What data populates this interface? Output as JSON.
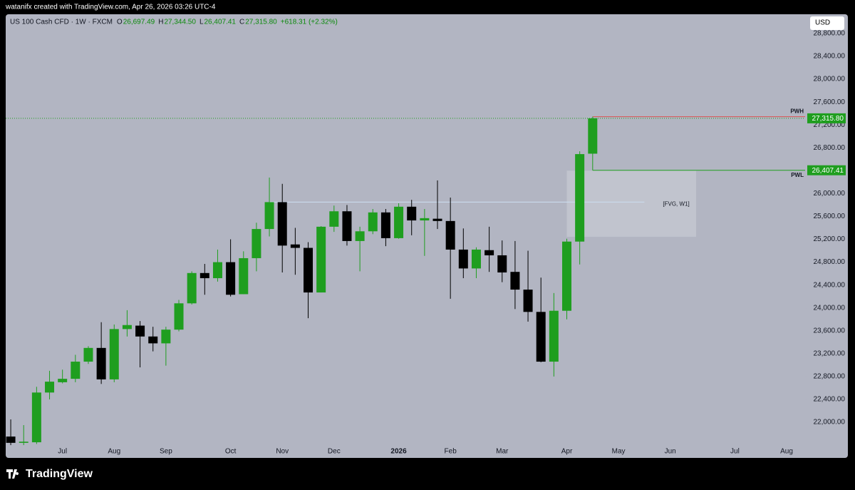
{
  "header": {
    "attribution": "watanifx created with TradingView.com, Apr 26, 2026 03:26 UTC-4",
    "ohlc": [
      {
        "key": "O",
        "value": "26,697.49"
      },
      {
        "key": "H",
        "value": "27,344.50"
      },
      {
        "key": "L",
        "value": "26,407.41"
      },
      {
        "key": "C",
        "value": "27,315.80"
      }
    ],
    "change": "+618.31 (+2.32%)",
    "currency": "USD",
    "brand": "TradingView"
  },
  "chart_data": {
    "type": "candlestick",
    "title": "US 100 Cash CFD · 1W · FXCM",
    "x": [
      0,
      1,
      2,
      3,
      4,
      5,
      6,
      7,
      8,
      9,
      10,
      11,
      12,
      13,
      14,
      15,
      16,
      17,
      18,
      19,
      20,
      21,
      22,
      23,
      24,
      25,
      26,
      27,
      28,
      29,
      30,
      31,
      32,
      33,
      34,
      35,
      36,
      37,
      38,
      39,
      40,
      41,
      42,
      43,
      44,
      45
    ],
    "open": [
      21750,
      21640,
      21650,
      22520,
      22700,
      22760,
      23060,
      23300,
      22750,
      23630,
      23690,
      23500,
      23380,
      23620,
      24080,
      24610,
      24520,
      24800,
      24240,
      24870,
      25380,
      25850,
      25110,
      25050,
      24270,
      25420,
      25690,
      25170,
      25340,
      25670,
      25220,
      25770,
      25530,
      25560,
      25520,
      25020,
      24690,
      25010,
      24920,
      24630,
      24320,
      23930,
      23060,
      23950,
      25160,
      26697.49
    ],
    "high": [
      22050,
      21950,
      22620,
      22900,
      22920,
      23180,
      23330,
      23750,
      23710,
      23960,
      23770,
      23670,
      23670,
      24140,
      24640,
      24770,
      25020,
      25200,
      24990,
      25490,
      26280,
      26170,
      25400,
      25150,
      25430,
      25790,
      25800,
      25420,
      25730,
      25730,
      25830,
      25890,
      25730,
      26230,
      25930,
      25390,
      25060,
      25420,
      25180,
      25170,
      25000,
      24530,
      24260,
      25210,
      26740,
      27344.5
    ],
    "low": [
      21600,
      21600,
      21620,
      22400,
      22680,
      22700,
      23020,
      22670,
      22700,
      23500,
      22960,
      23240,
      22990,
      23590,
      24060,
      24230,
      24460,
      24200,
      24240,
      24640,
      25250,
      24620,
      24580,
      23820,
      24270,
      25330,
      25090,
      24640,
      25290,
      25080,
      25210,
      25270,
      24910,
      25380,
      24160,
      24520,
      24520,
      24630,
      24450,
      23980,
      23760,
      23050,
      22800,
      23800,
      24760,
      26407.41
    ],
    "close": [
      21640,
      21660,
      22520,
      22710,
      22760,
      23060,
      23300,
      22750,
      23630,
      23700,
      23500,
      23380,
      23620,
      24080,
      24610,
      24520,
      24800,
      24230,
      24870,
      25380,
      25850,
      25090,
      25050,
      24270,
      25420,
      25690,
      25170,
      25340,
      25670,
      25220,
      25770,
      25530,
      25570,
      25520,
      25020,
      24690,
      25020,
      24920,
      24620,
      24320,
      23930,
      23060,
      23950,
      25160,
      26690,
      27315.8
    ],
    "up_color": "#1f9e1f",
    "down_color": "#000000",
    "xlim": [
      -0.39,
      61.43
    ],
    "ylim": [
      21626,
      29136
    ],
    "xticks": [
      {
        "value": 4,
        "label": "Jul"
      },
      {
        "value": 8,
        "label": "Aug"
      },
      {
        "value": 12,
        "label": "Sep"
      },
      {
        "value": 17,
        "label": "Oct"
      },
      {
        "value": 21,
        "label": "Nov"
      },
      {
        "value": 25,
        "label": "Dec"
      },
      {
        "value": 30,
        "label": "2026",
        "bold": true
      },
      {
        "value": 34,
        "label": "Feb"
      },
      {
        "value": 38,
        "label": "Mar"
      },
      {
        "value": 43,
        "label": "Apr"
      },
      {
        "value": 47,
        "label": "May"
      },
      {
        "value": 51,
        "label": "Jun"
      },
      {
        "value": 56,
        "label": "Jul"
      },
      {
        "value": 60,
        "label": "Aug"
      }
    ],
    "yticks": [
      {
        "value": 22000,
        "label": "22,000.00"
      },
      {
        "value": 22400,
        "label": "22,400.00"
      },
      {
        "value": 22800,
        "label": "22,800.00"
      },
      {
        "value": 23200,
        "label": "23,200.00"
      },
      {
        "value": 23600,
        "label": "23,600.00"
      },
      {
        "value": 24000,
        "label": "24,000.00"
      },
      {
        "value": 24400,
        "label": "24,400.00"
      },
      {
        "value": 24800,
        "label": "24,800.00"
      },
      {
        "value": 25200,
        "label": "25,200.00"
      },
      {
        "value": 25600,
        "label": "25,600.00"
      },
      {
        "value": 26000,
        "label": "26,000.00"
      },
      {
        "value": 26400,
        "label": "26,400.00"
      },
      {
        "value": 26800,
        "label": "26,800.00"
      },
      {
        "value": 27200,
        "label": "27,200.00"
      },
      {
        "value": 27600,
        "label": "27,600.00"
      },
      {
        "value": 28000,
        "label": "28,000.00"
      },
      {
        "value": 28400,
        "label": "28,400.00"
      },
      {
        "value": 28800,
        "label": "28,800.00"
      }
    ],
    "grid": false,
    "levels": [
      {
        "label": "PWH",
        "value": 27344.5,
        "x_from": 45,
        "color": "#d9534f"
      },
      {
        "label": "PWL",
        "value": 26407.41,
        "x_from": 45,
        "color": "#1f9e1f"
      }
    ],
    "price_tags": [
      {
        "value": 27315.8,
        "label": "27,315.80"
      },
      {
        "value": 26407.41,
        "label": "26,407.41"
      }
    ],
    "last_price_line": {
      "value": 27315.8,
      "color": "#1f9e1f"
    },
    "zone": {
      "label": "[FVG, W1]",
      "x": [
        43,
        53
      ],
      "y": [
        25244,
        26400
      ],
      "line_value": 25850,
      "line_x": [
        20,
        49
      ]
    }
  }
}
